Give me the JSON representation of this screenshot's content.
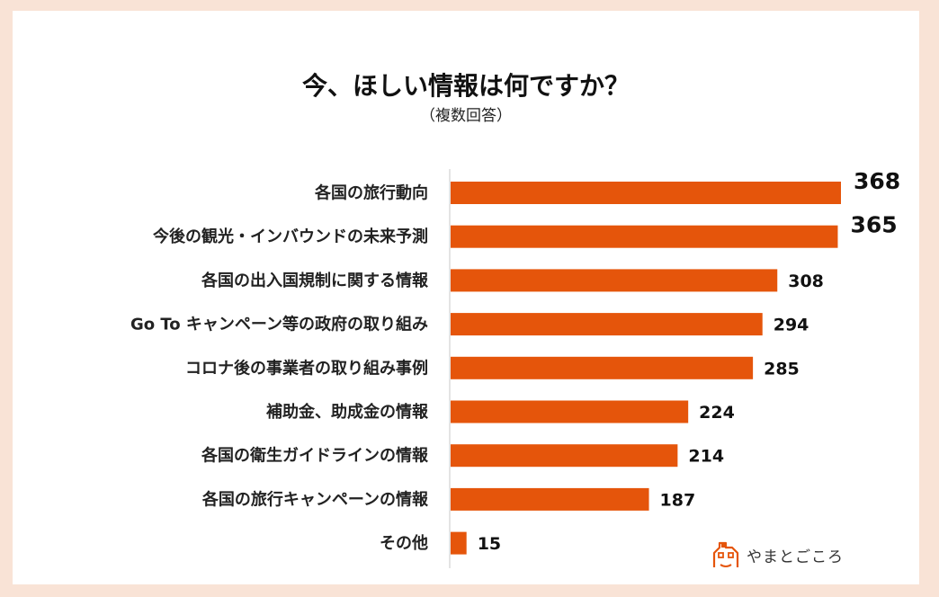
{
  "page": {
    "background_color": "#f9e3d6",
    "card_color": "#ffffff"
  },
  "chart_data": {
    "type": "bar",
    "orientation": "horizontal",
    "title": "今、ほしい情報は何ですか？",
    "subtitle": "（複数回答）",
    "categories": [
      "各国の旅行動向",
      "今後の観光・インバウンドの未来予測",
      "各国の出入国規制に関する情報",
      "Go To キャンペーン等の政府の取り組み",
      "コロナ後の事業者の取り組み事例",
      "補助金、助成金の情報",
      "各国の衛生ガイドラインの情報",
      "各国の旅行キャンペーンの情報",
      "その他"
    ],
    "values": [
      368,
      365,
      308,
      294,
      285,
      224,
      214,
      187,
      15
    ],
    "xlim": [
      0,
      368
    ],
    "bar_color": "#e5550b",
    "grid": false,
    "legend": "none"
  },
  "logo": {
    "text": "やまとごころ",
    "icon": "house-logo-icon"
  }
}
